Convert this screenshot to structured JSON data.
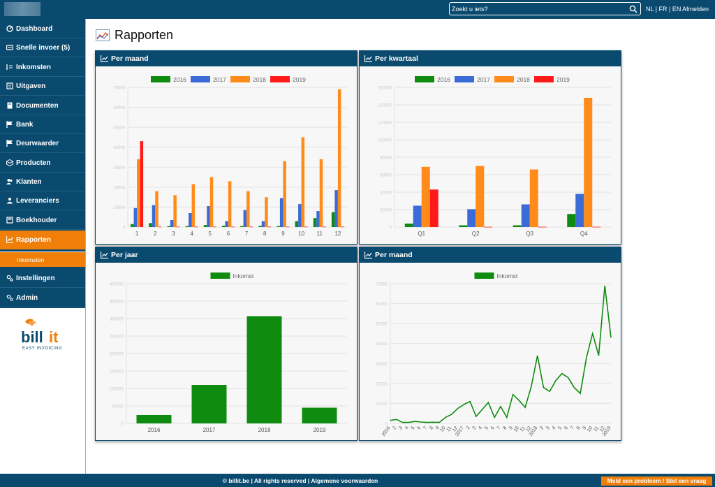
{
  "topbar": {
    "search_placeholder": "Zoekt u iets?",
    "languages": [
      "NL",
      "FR",
      "EN"
    ],
    "logout_label": "Afmelden"
  },
  "sidebar": {
    "items": [
      {
        "label": "Dashboard",
        "icon": "dashboard-icon"
      },
      {
        "label": "Snelle invoer (5)",
        "icon": "quick-entry-icon"
      },
      {
        "label": "Inkomsten",
        "icon": "income-icon"
      },
      {
        "label": "Uitgaven",
        "icon": "expenses-icon"
      },
      {
        "label": "Documenten",
        "icon": "documents-icon"
      },
      {
        "label": "Bank",
        "icon": "bank-flag-icon"
      },
      {
        "label": "Deurwaarder",
        "icon": "bailiff-flag-icon"
      },
      {
        "label": "Producten",
        "icon": "products-icon"
      },
      {
        "label": "Klanten",
        "icon": "customers-icon"
      },
      {
        "label": "Leveranciers",
        "icon": "suppliers-icon"
      },
      {
        "label": "Boekhouder",
        "icon": "accountant-icon"
      },
      {
        "label": "Rapporten",
        "icon": "reports-icon",
        "active": true
      },
      {
        "label": "Instellingen",
        "icon": "settings-icon"
      },
      {
        "label": "Admin",
        "icon": "admin-icon"
      }
    ],
    "sub_item": "Inkomsten",
    "logo": {
      "word1": "bill",
      "word2": "it",
      "tagline": "EASY INVOICING"
    }
  },
  "page": {
    "title": "Rapporten"
  },
  "panels": {
    "monthly_by_year": "Per maand",
    "quarterly": "Per kwartaal",
    "yearly": "Per jaar",
    "monthly_trend": "Per maand"
  },
  "colors": {
    "brand": "#0b4a6f",
    "accent": "#f07f09",
    "s2016": "#0f8c0f",
    "s2017": "#3a6bd6",
    "s2018": "#ff8c1a",
    "s2019": "#ff1a1a",
    "income": "#0f8c0f"
  },
  "chart_data": [
    {
      "type": "bar",
      "title": "Per maand",
      "categories": [
        "1",
        "2",
        "3",
        "4",
        "5",
        "6",
        "7",
        "8",
        "9",
        "10",
        "11",
        "12"
      ],
      "ylim": [
        0,
        70000
      ],
      "yticks": [
        "0",
        "10000",
        "20000",
        "30000",
        "40000",
        "50000",
        "60000",
        "70000"
      ],
      "legend_position": "top",
      "series": [
        {
          "name": "2016",
          "values": [
            1500,
            2000,
            500,
            500,
            1000,
            700,
            500,
            600,
            500,
            3000,
            4500,
            7500
          ]
        },
        {
          "name": "2017",
          "values": [
            9500,
            11000,
            3500,
            7000,
            10500,
            3000,
            8500,
            3000,
            14500,
            11500,
            8000,
            18500
          ]
        },
        {
          "name": "2018",
          "values": [
            34000,
            18000,
            16000,
            21500,
            25000,
            23000,
            18000,
            15000,
            33000,
            45000,
            34000,
            69000
          ]
        },
        {
          "name": "2019",
          "values": [
            43000,
            200,
            200,
            200,
            200,
            200,
            200,
            200,
            200,
            200,
            200,
            200
          ]
        }
      ]
    },
    {
      "type": "bar",
      "title": "Per kwartaal",
      "categories": [
        "Q1",
        "Q2",
        "Q3",
        "Q4"
      ],
      "ylim": [
        0,
        160000
      ],
      "yticks": [
        "0",
        "20000",
        "40000",
        "60000",
        "80000",
        "100000",
        "120000",
        "140000",
        "160000"
      ],
      "legend_position": "top",
      "series": [
        {
          "name": "2016",
          "values": [
            4000,
            2000,
            2000,
            15000
          ]
        },
        {
          "name": "2017",
          "values": [
            24500,
            20500,
            26000,
            38000
          ]
        },
        {
          "name": "2018",
          "values": [
            69000,
            70000,
            66000,
            148000
          ]
        },
        {
          "name": "2019",
          "values": [
            43000,
            300,
            300,
            300
          ]
        }
      ]
    },
    {
      "type": "bar",
      "title": "Per jaar",
      "categories": [
        "2016",
        "2017",
        "2018",
        "2019"
      ],
      "ylim": [
        0,
        400000
      ],
      "yticks": [
        "0",
        "50000",
        "100000",
        "150000",
        "200000",
        "250000",
        "300000",
        "350000",
        "400000"
      ],
      "legend_position": "top",
      "series": [
        {
          "name": "Inkomst",
          "values": [
            24000,
            110000,
            307000,
            45000
          ]
        }
      ]
    },
    {
      "type": "line",
      "title": "Per maand",
      "ylim": [
        0,
        70000
      ],
      "yticks": [
        "0",
        "10000",
        "20000",
        "30000",
        "40000",
        "50000",
        "60000",
        "70000"
      ],
      "legend_position": "top",
      "x": [
        "2016",
        "2",
        "3",
        "4",
        "5",
        "6",
        "7",
        "8",
        "9",
        "10",
        "11",
        "12",
        "2017",
        "2",
        "3",
        "4",
        "5",
        "6",
        "7",
        "8",
        "9",
        "10",
        "11",
        "12",
        "2018",
        "2",
        "3",
        "4",
        "5",
        "6",
        "7",
        "8",
        "9",
        "10",
        "11",
        "12",
        "2019"
      ],
      "series": [
        {
          "name": "Inkomst",
          "values": [
            1500,
            2000,
            500,
            500,
            1000,
            700,
            500,
            600,
            500,
            3000,
            4500,
            7500,
            9500,
            11000,
            3500,
            7000,
            10500,
            3000,
            8500,
            3000,
            14500,
            11500,
            8000,
            18500,
            34000,
            18000,
            16000,
            21500,
            25000,
            23000,
            18000,
            15000,
            33000,
            45000,
            34000,
            69000,
            43000
          ]
        }
      ]
    }
  ],
  "footer": {
    "copyright": "© billit.be | All rights reserved | ",
    "terms": "Algemene voorwaarden",
    "report_button": "Meld een probleem / Stel een vraag"
  }
}
